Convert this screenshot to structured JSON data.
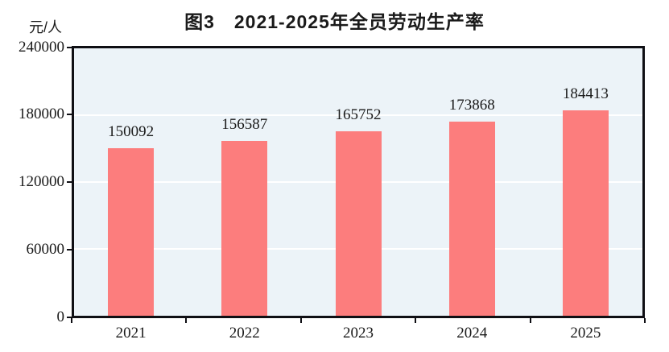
{
  "chart_data": {
    "type": "bar",
    "title": "图3　2021-2025年全员劳动生产率",
    "y_unit_label": "元/人",
    "categories": [
      "2021",
      "2022",
      "2023",
      "2024",
      "2025"
    ],
    "values": [
      150092,
      156587,
      165752,
      173868,
      184413
    ],
    "ylim": [
      0,
      240000
    ],
    "yticks": [
      0,
      60000,
      120000,
      180000,
      240000
    ],
    "gridline_values": [
      60000,
      120000,
      180000
    ],
    "grid": true,
    "legend_position": "none",
    "xlabel": "",
    "ylabel": "元/人"
  },
  "style": {
    "bar_color": "#fc7d7d",
    "plot_background": "#ecf3f8",
    "gridline_color": "#ffffff",
    "axis_color": "#0f0f14",
    "text_color": "#1a1a1a",
    "page_background": "#ffffff"
  }
}
